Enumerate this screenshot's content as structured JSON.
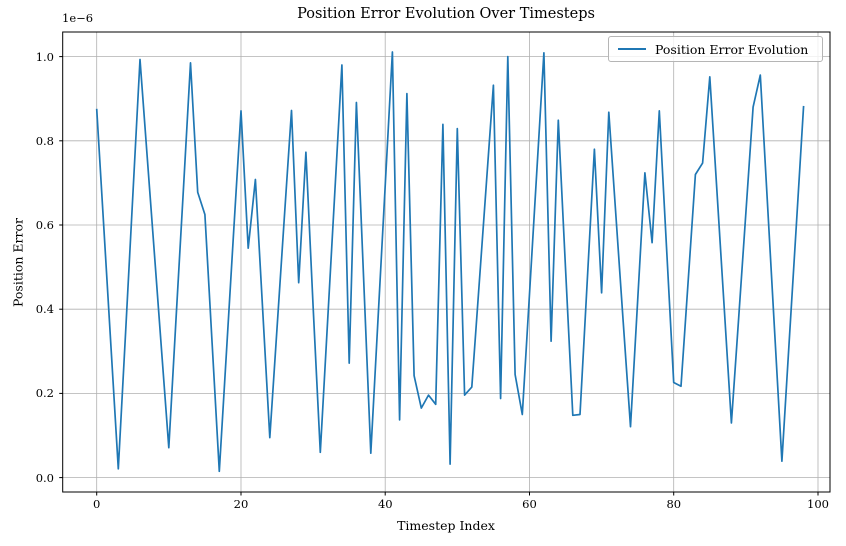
{
  "chart_data": {
    "type": "line",
    "title": "Position Error Evolution Over Timesteps",
    "xlabel": "Timestep Index",
    "ylabel": "Position Error",
    "offset_label": "1e−6",
    "legend_entries": [
      "Position Error Evolution"
    ],
    "legend_position": "upper right",
    "line_color": "#1f77b4",
    "grid": true,
    "grid_color": "#b0b0b0",
    "spine_color": "#000000",
    "xlim": [
      -4.9,
      102.9
    ],
    "ylim": [
      -0.034,
      1.059
    ],
    "y_unit_scale": "1e-6",
    "xticks": [
      0,
      20,
      40,
      60,
      80,
      100
    ],
    "yticks": [
      0.0,
      0.2,
      0.4,
      0.6,
      0.8,
      1.0
    ],
    "xtick_labels": [
      "0",
      "20",
      "40",
      "60",
      "80",
      "100"
    ],
    "ytick_labels": [
      "0.0",
      "0.2",
      "0.4",
      "0.6",
      "0.8",
      "1.0"
    ],
    "x": [
      0,
      1,
      2,
      3,
      4,
      5,
      6,
      7,
      8,
      9,
      10,
      11,
      12,
      13,
      14,
      15,
      16,
      17,
      18,
      19,
      20,
      21,
      22,
      23,
      24,
      25,
      26,
      27,
      28,
      29,
      30,
      31,
      32,
      33,
      34,
      35,
      36,
      37,
      38,
      39,
      40,
      41,
      42,
      43,
      44,
      45,
      46,
      47,
      48,
      49,
      50,
      51,
      52,
      53,
      54,
      55,
      56,
      57,
      58,
      59,
      60,
      61,
      62,
      63,
      64,
      65,
      66,
      67,
      68,
      69,
      70,
      71,
      72,
      73,
      74,
      75,
      76,
      77,
      78,
      79,
      80,
      81,
      82,
      83,
      84,
      85,
      86,
      87,
      88,
      89,
      90,
      91,
      92,
      93,
      94,
      95,
      96,
      97,
      98
    ],
    "values": [
      0.876,
      0.591,
      0.306,
      0.021,
      0.345,
      0.669,
      0.993,
      0.762,
      0.532,
      0.301,
      0.071,
      0.376,
      0.68,
      0.985,
      0.678,
      0.625,
      0.32,
      0.015,
      0.3,
      0.586,
      0.871,
      0.545,
      0.708,
      0.402,
      0.095,
      0.354,
      0.613,
      0.872,
      0.463,
      0.773,
      0.407,
      0.06,
      0.367,
      0.673,
      0.98,
      0.272,
      0.891,
      0.474,
      0.058,
      0.376,
      0.693,
      1.011,
      0.137,
      0.912,
      0.242,
      0.165,
      0.196,
      0.174,
      0.839,
      0.032,
      0.829,
      0.196,
      0.215,
      0.454,
      0.693,
      0.932,
      0.188,
      1.0,
      0.245,
      0.15,
      0.436,
      0.723,
      1.009,
      0.324,
      0.849,
      0.498,
      0.148,
      0.15,
      0.465,
      0.78,
      0.439,
      0.868,
      0.619,
      0.37,
      0.121,
      0.422,
      0.724,
      0.558,
      0.871,
      0.548,
      0.226,
      0.217,
      0.468,
      0.72,
      0.747,
      0.952,
      0.678,
      0.404,
      0.13,
      0.38,
      0.63,
      0.88,
      0.956,
      0.65,
      0.344,
      0.039,
      0.32,
      0.602,
      0.883
    ]
  }
}
